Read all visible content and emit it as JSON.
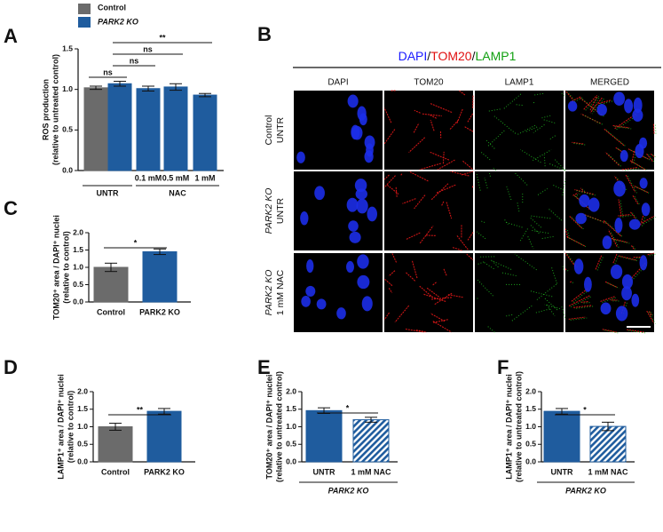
{
  "legend": [
    {
      "label": "Control",
      "color": "#6b6b6b"
    },
    {
      "label": "PARK2 KO",
      "color": "#1f5c9e"
    }
  ],
  "panel_letters": [
    "A",
    "B",
    "C",
    "D",
    "E",
    "F"
  ],
  "panel_b": {
    "title_parts": [
      {
        "text": "DAPI",
        "color": "#1a1aff"
      },
      {
        "text": "/",
        "color": "#111111"
      },
      {
        "text": "TOM20",
        "color": "#e01010"
      },
      {
        "text": "/",
        "color": "#111111"
      },
      {
        "text": "LAMP1",
        "color": "#10a010"
      }
    ],
    "columns": [
      "DAPI",
      "TOM20",
      "LAMP1",
      "MERGED"
    ],
    "rows": [
      [
        "Control",
        "UNTR"
      ],
      [
        "PARK2 KO",
        "UNTR"
      ],
      [
        "PARK2 KO",
        "1 mM NAC"
      ]
    ]
  },
  "chart_data": [
    {
      "type": "bar",
      "ylabel_lines": [
        "ROS production",
        "(relative to untreated control)"
      ],
      "categories": [
        null,
        null,
        "0.1 mM",
        "0.5 mM",
        "1 mM"
      ],
      "groups": [
        "UNTR",
        "NAC"
      ],
      "values": [
        1.02,
        1.07,
        1.01,
        1.03,
        0.93
      ],
      "errors": [
        0.02,
        0.03,
        0.03,
        0.04,
        0.02
      ],
      "colors": [
        "#6b6b6b",
        "#1f5c9e",
        "#1f5c9e",
        "#1f5c9e",
        "#1f5c9e"
      ],
      "hatched": [
        false,
        false,
        false,
        false,
        false
      ],
      "ylim": [
        0,
        1.5
      ],
      "yticks": [
        {
          "value": 0,
          "label": "0.0"
        },
        0.5,
        {
          "value": 1,
          "label": "1.0"
        },
        1.5
      ],
      "annotations": [
        "ns",
        "ns",
        "ns",
        "**"
      ]
    },
    {
      "type": "bar",
      "ylabel_lines": [
        "TOM20⁺ area / DAPI⁺ nuclei",
        "(relative to control)"
      ],
      "categories": [
        "Control",
        "PARK2 KO"
      ],
      "values": [
        1.0,
        1.45
      ],
      "errors": [
        0.12,
        0.08
      ],
      "colors": [
        "#6b6b6b",
        "#1f5c9e"
      ],
      "hatched": [
        false,
        false
      ],
      "ylim": [
        0,
        2
      ],
      "yticks": [
        {
          "value": 0,
          "label": "0.0"
        },
        0.5,
        {
          "value": 1,
          "label": "1.0"
        },
        1.5,
        {
          "value": 2,
          "label": "2.0"
        }
      ],
      "annotations": [
        "*"
      ]
    },
    {
      "type": "bar",
      "ylabel_lines": [
        "LAMP1⁺ area / DAPI⁺ nuclei",
        "(relative to control)"
      ],
      "categories": [
        "Control",
        "PARK2 KO"
      ],
      "values": [
        1.0,
        1.44
      ],
      "errors": [
        0.1,
        0.08
      ],
      "colors": [
        "#6b6b6b",
        "#1f5c9e"
      ],
      "hatched": [
        false,
        false
      ],
      "ylim": [
        0,
        2
      ],
      "yticks": [
        {
          "value": 0,
          "label": "0.0"
        },
        0.5,
        {
          "value": 1,
          "label": "1.0"
        },
        1.5,
        {
          "value": 2,
          "label": "2.0"
        }
      ],
      "annotations": [
        "**"
      ]
    },
    {
      "type": "bar",
      "ylabel_lines": [
        "TOM20⁺ area / DAPI⁺ nuclei",
        "(relative to untreated control)"
      ],
      "categories": [
        "UNTR",
        "1 mM NAC"
      ],
      "group_label": "PARK2 KO",
      "values": [
        1.46,
        1.2
      ],
      "errors": [
        0.08,
        0.07
      ],
      "colors": [
        "#1f5c9e",
        "#1f5c9e"
      ],
      "hatched": [
        false,
        true
      ],
      "ylim": [
        0,
        2
      ],
      "yticks": [
        {
          "value": 0,
          "label": "0.0"
        },
        0.5,
        {
          "value": 1,
          "label": "1.0"
        },
        1.5,
        {
          "value": 2,
          "label": "2.0"
        }
      ],
      "annotations": [
        "*"
      ]
    },
    {
      "type": "bar",
      "ylabel_lines": [
        "LAMP1⁺ area / DAPI⁺ nuclei",
        "(relative to untreated control)"
      ],
      "categories": [
        "UNTR",
        "1 mM NAC"
      ],
      "group_label": "PARK2 KO",
      "values": [
        1.44,
        1.01
      ],
      "errors": [
        0.08,
        0.12
      ],
      "colors": [
        "#1f5c9e",
        "#1f5c9e"
      ],
      "hatched": [
        false,
        true
      ],
      "ylim": [
        0,
        2
      ],
      "yticks": [
        {
          "value": 0,
          "label": "0.0"
        },
        0.5,
        {
          "value": 1,
          "label": "1.0"
        },
        1.5,
        {
          "value": 2,
          "label": "2.0"
        }
      ],
      "annotations": [
        "*"
      ]
    }
  ]
}
